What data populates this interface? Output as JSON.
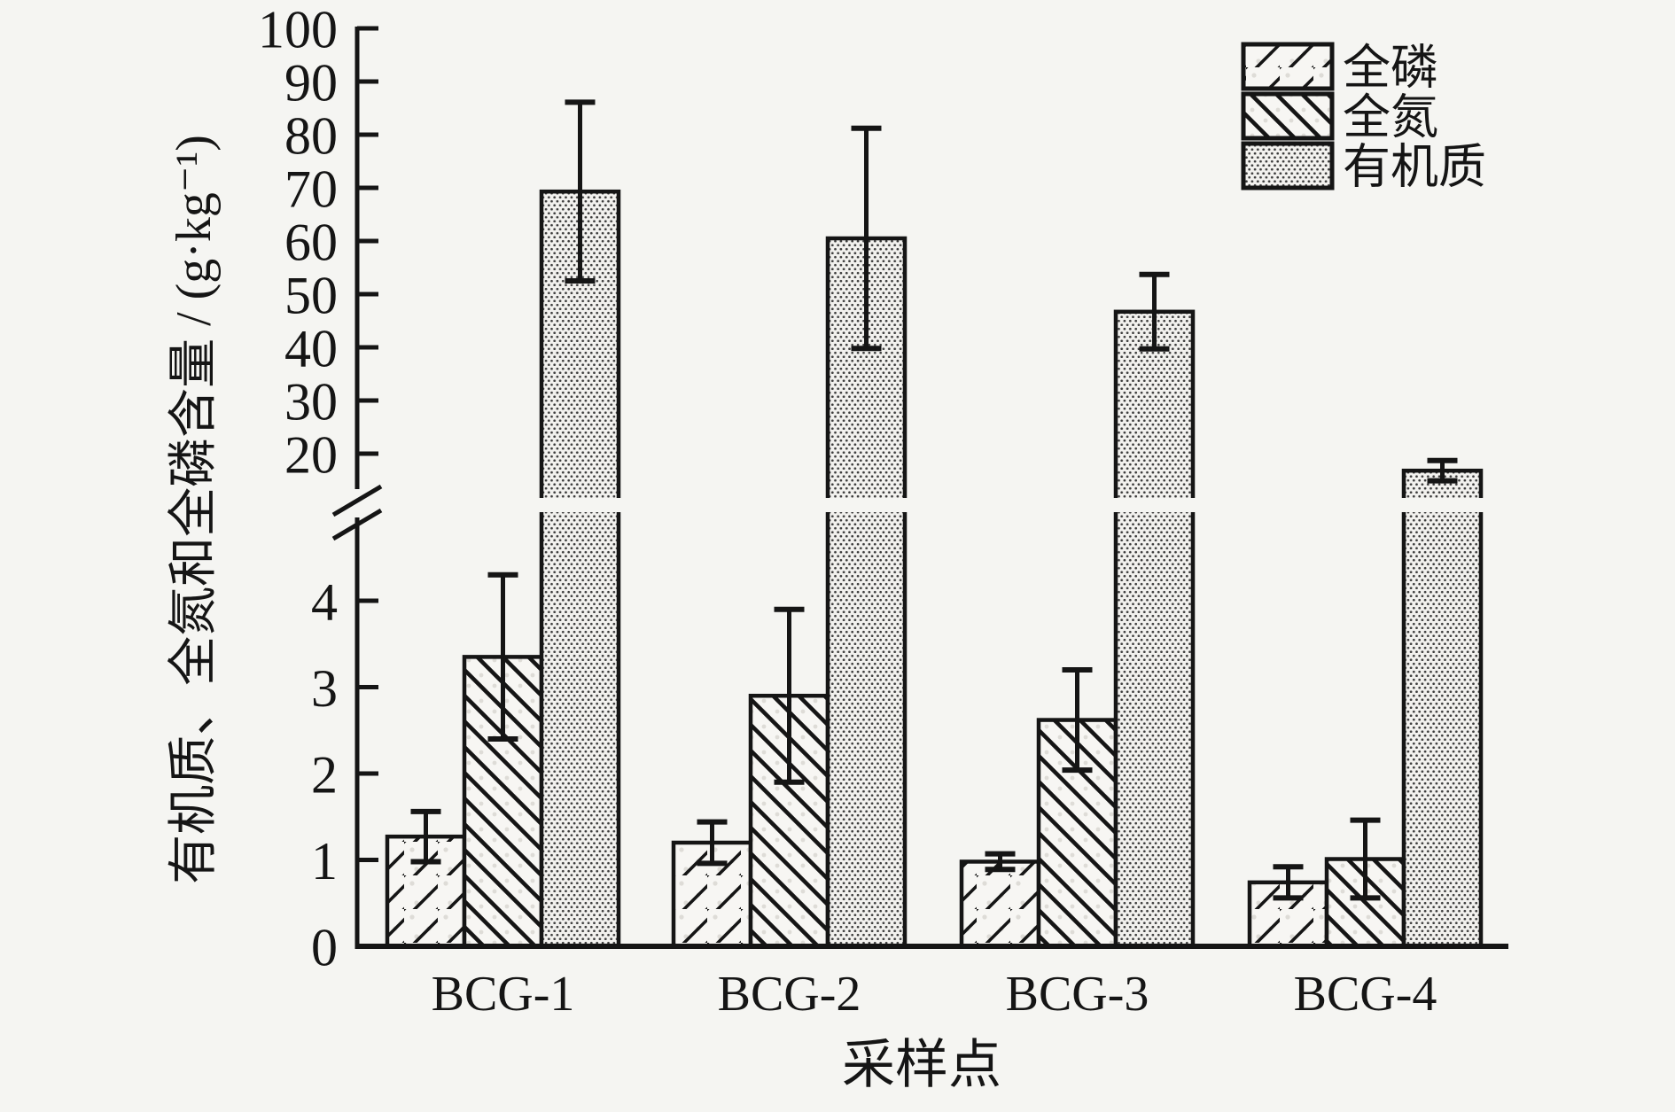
{
  "chart_data": {
    "type": "bar",
    "title": "",
    "xlabel": "采样点",
    "ylabel": "有机质、全氮和全磷含量 / (g·kg⁻¹)",
    "categories": [
      "BCG-1",
      "BCG-2",
      "BCG-3",
      "BCG-4"
    ],
    "series": [
      {
        "id": "total-phosphorus",
        "name": "全磷",
        "pattern": "diagonal-forward",
        "values": [
          1.27,
          1.2,
          0.98,
          0.74
        ],
        "errors": [
          0.29,
          0.24,
          0.09,
          0.18
        ]
      },
      {
        "id": "total-nitrogen",
        "name": "全氮",
        "pattern": "diagonal-backward",
        "values": [
          3.35,
          2.9,
          2.62,
          1.01
        ],
        "errors": [
          0.95,
          1.0,
          0.58,
          0.45
        ]
      },
      {
        "id": "organic-matter",
        "name": "有机质",
        "pattern": "stipple-dots",
        "values": [
          69.3,
          60.5,
          46.7,
          16.8
        ],
        "errors": [
          16.8,
          20.7,
          7.0,
          1.9
        ]
      }
    ],
    "axis_break": {
      "lower_max": 4.9,
      "upper_min": 15,
      "upper_max": 100
    },
    "lower_ticks": [
      0,
      1,
      2,
      3,
      4
    ],
    "upper_ticks": [
      20,
      30,
      40,
      50,
      60,
      70,
      80,
      90,
      100
    ],
    "grid": false,
    "legend_position": "top-right",
    "error_bars": true,
    "colors": {
      "ink": "#151515",
      "background": "#f5f5f2",
      "hatch_bar_fill": "#f7f6f3",
      "stipple_dot": "#3c3c3c",
      "faint_speckle": "#dedcd7"
    }
  }
}
